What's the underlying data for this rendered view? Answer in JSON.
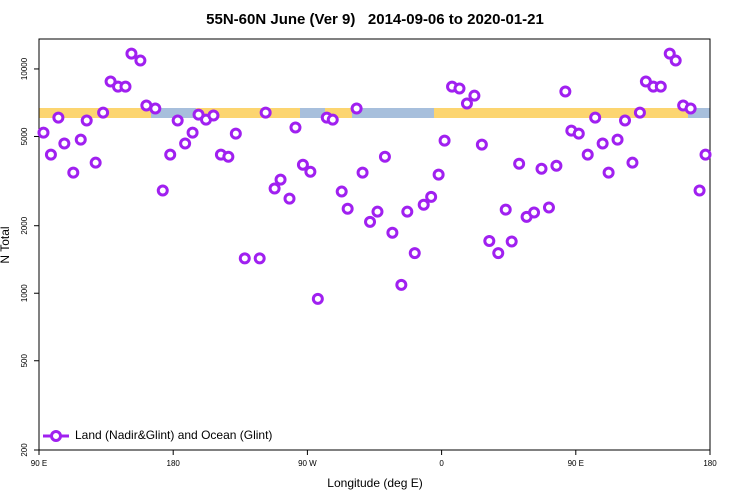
{
  "chart_data": {
    "type": "scatter",
    "title": "55N-60N June (Ver 9)   2014-09-06 to 2020-01-21",
    "x_label": "Longitude (deg E)",
    "y_label": "N Total",
    "xlim": [
      90,
      540
    ],
    "xticks": [
      {
        "value": 90,
        "label": "90 E"
      },
      {
        "value": 180,
        "label": "180"
      },
      {
        "value": 270,
        "label": "90 W"
      },
      {
        "value": 360,
        "label": "0"
      },
      {
        "value": 450,
        "label": "90 E"
      },
      {
        "value": 540,
        "label": "180"
      }
    ],
    "ylim": [
      200,
      13600
    ],
    "yticks": [
      200,
      500,
      1000,
      2000,
      5000,
      10000
    ],
    "log_y": true,
    "legend": "bottom left",
    "series": [
      {
        "name": "Land (Nadir&Glint) and Ocean (Glint)",
        "color": "#a020f0",
        "x": [
          93,
          98,
          103,
          107,
          113,
          118,
          122,
          128,
          133,
          138,
          143,
          148,
          152,
          158,
          162,
          168,
          173,
          178,
          183,
          188,
          193,
          197,
          202,
          207,
          212,
          217,
          222,
          228,
          238,
          242,
          248,
          252,
          258,
          262,
          267,
          272,
          277,
          283,
          287,
          293,
          297,
          303,
          307,
          312,
          317,
          322,
          327,
          333,
          337,
          342,
          348,
          353,
          358,
          362,
          367,
          372,
          377,
          382,
          387,
          392,
          398,
          403,
          407,
          412,
          417,
          422,
          427,
          432,
          437,
          443,
          447,
          452,
          458,
          463,
          468,
          472,
          478,
          483,
          488,
          493,
          497,
          502,
          507,
          513,
          517,
          522,
          527,
          533,
          537
        ],
        "values": [
          5200,
          4150,
          6070,
          4650,
          3450,
          4840,
          5890,
          3820,
          6390,
          8790,
          8340,
          8340,
          11700,
          10900,
          6870,
          6660,
          2870,
          4150,
          5890,
          4650,
          5200,
          6260,
          5940,
          6200,
          4150,
          4060,
          5150,
          1430,
          1430,
          6390,
          2930,
          3210,
          2640,
          5480,
          3740,
          3480,
          944,
          6070,
          5940,
          2840,
          2380,
          6660,
          3450,
          2080,
          2310,
          4060,
          1860,
          1090,
          2310,
          1510,
          2480,
          2690,
          3380,
          4790,
          8340,
          8180,
          7010,
          7600,
          4600,
          1710,
          1510,
          2360,
          1700,
          3780,
          2190,
          2290,
          3590,
          2410,
          3700,
          7930,
          5310,
          5150,
          4150,
          6070,
          4650,
          3450,
          4840,
          5890,
          3820,
          6390,
          8790,
          8340,
          8340,
          11700,
          10900,
          6870,
          6660,
          2870,
          4150
        ]
      }
    ]
  }
}
